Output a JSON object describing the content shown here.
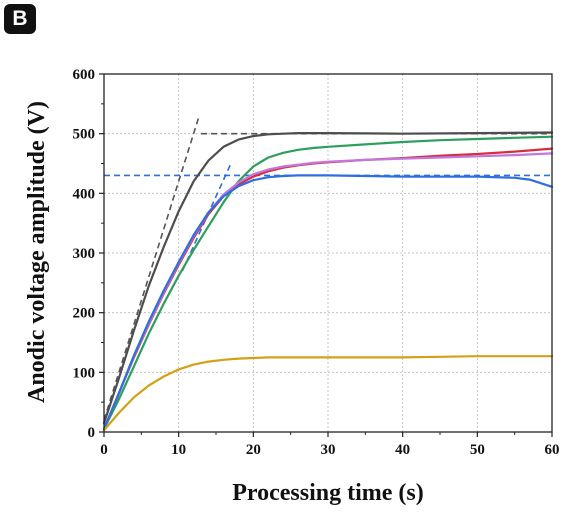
{
  "panel_label": "B",
  "chart_data": {
    "type": "line",
    "title": "",
    "xlabel": "Processing time (s)",
    "ylabel": "Anodic voltage amplitude (V)",
    "xlim": [
      0,
      60
    ],
    "ylim": [
      0,
      600
    ],
    "xticks": [
      0,
      10,
      20,
      30,
      40,
      50,
      60
    ],
    "yticks": [
      0,
      100,
      200,
      300,
      400,
      500,
      600
    ],
    "grid": true,
    "series": [
      {
        "color": "#4d4d4d",
        "x": [
          0,
          2,
          4,
          6,
          8,
          10,
          12,
          14,
          16,
          18,
          20,
          22,
          24,
          26,
          30,
          40,
          50,
          60
        ],
        "y": [
          15,
          90,
          170,
          245,
          310,
          370,
          420,
          455,
          478,
          490,
          496,
          499,
          500,
          501,
          501,
          500,
          501,
          502
        ]
      },
      {
        "color": "#2ca05a",
        "x": [
          0,
          2,
          4,
          6,
          8,
          10,
          12,
          14,
          16,
          18,
          20,
          22,
          24,
          26,
          28,
          30,
          35,
          40,
          45,
          50,
          55,
          60
        ],
        "y": [
          5,
          55,
          110,
          165,
          215,
          262,
          305,
          345,
          385,
          420,
          445,
          460,
          468,
          473,
          476,
          478,
          482,
          486,
          489,
          491,
          493,
          495
        ]
      },
      {
        "color": "#d62f3c",
        "x": [
          0,
          2,
          4,
          6,
          8,
          10,
          12,
          14,
          16,
          18,
          20,
          22,
          24,
          26,
          28,
          30,
          35,
          40,
          45,
          50,
          55,
          60
        ],
        "y": [
          5,
          65,
          125,
          180,
          232,
          280,
          325,
          365,
          395,
          415,
          428,
          437,
          443,
          447,
          450,
          452,
          456,
          459,
          463,
          466,
          470,
          475
        ]
      },
      {
        "color": "#c277e0",
        "x": [
          0,
          2,
          4,
          6,
          8,
          10,
          12,
          14,
          16,
          18,
          20,
          22,
          24,
          26,
          28,
          30,
          35,
          40,
          45,
          50,
          55,
          60
        ],
        "y": [
          5,
          65,
          127,
          182,
          234,
          283,
          328,
          368,
          398,
          418,
          432,
          440,
          445,
          448,
          451,
          453,
          456,
          458,
          460,
          462,
          464,
          467
        ]
      },
      {
        "color": "#2d6fe0",
        "x": [
          0,
          2,
          4,
          6,
          8,
          10,
          12,
          14,
          16,
          18,
          20,
          22,
          24,
          26,
          28,
          30,
          35,
          40,
          45,
          50,
          55,
          57,
          60
        ],
        "y": [
          5,
          65,
          128,
          185,
          237,
          285,
          330,
          368,
          395,
          412,
          422,
          427,
          429,
          430,
          430,
          430,
          429,
          428,
          428,
          428,
          426,
          423,
          411
        ]
      },
      {
        "color": "#d4a017",
        "x": [
          0,
          2,
          4,
          6,
          8,
          10,
          12,
          14,
          16,
          18,
          20,
          22,
          25,
          30,
          35,
          40,
          45,
          50,
          55,
          60
        ],
        "y": [
          3,
          32,
          58,
          78,
          93,
          105,
          113,
          118,
          121,
          123,
          124,
          125,
          125,
          125,
          125,
          125,
          126,
          127,
          127,
          127
        ]
      }
    ],
    "guides": [
      {
        "color": "#555555",
        "x": [
          13,
          60
        ],
        "y": [
          500,
          500
        ]
      },
      {
        "color": "#555555",
        "x": [
          0,
          12.7
        ],
        "y": [
          20,
          528
        ]
      },
      {
        "color": "#2d6fe0",
        "x": [
          0,
          60
        ],
        "y": [
          430,
          430
        ]
      },
      {
        "color": "#2d6fe0",
        "x": [
          10.5,
          17
        ],
        "y": [
          270,
          450
        ]
      }
    ]
  }
}
